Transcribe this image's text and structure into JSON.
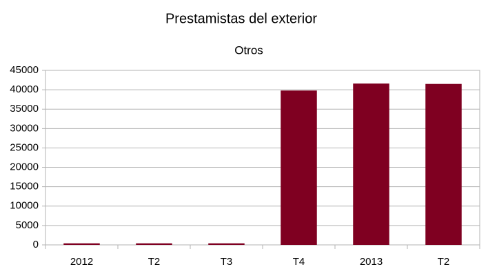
{
  "chart_data": {
    "type": "bar",
    "title": "Prestamistas del exterior",
    "subtitle": "Otros",
    "categories": [
      "2012",
      "T2",
      "T3",
      "T4",
      "2013",
      "T2"
    ],
    "values": [
      400,
      400,
      400,
      39800,
      41600,
      41500
    ],
    "color": "#7f0021",
    "ylim": [
      0,
      45000
    ],
    "yticks": [
      0,
      5000,
      10000,
      15000,
      20000,
      25000,
      30000,
      35000,
      40000,
      45000
    ],
    "grid": true
  }
}
